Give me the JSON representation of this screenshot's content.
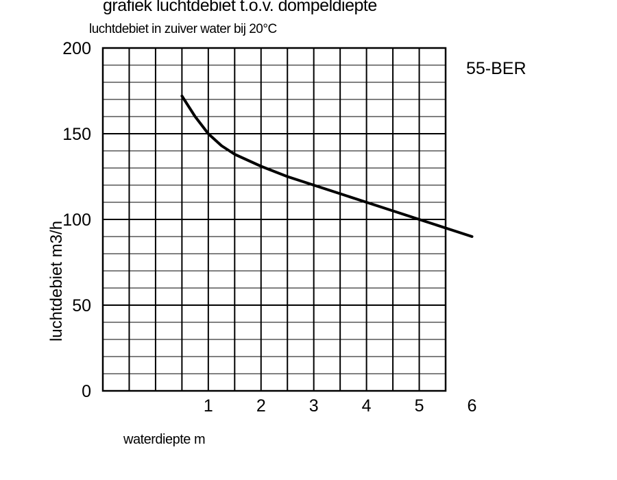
{
  "chart_data": {
    "type": "line",
    "title": "grafiek luchtdebiet t.o.v. dompeldiepte",
    "subtitle": "luchtdebiet in zuiver water bij 20°C",
    "annotation": "55-BER",
    "xlabel": "waterdiepte m",
    "ylabel": "luchtdebiet m3/h",
    "xlim": [
      -1,
      5.5
    ],
    "ylim": [
      0,
      200
    ],
    "x_ticks": [
      1,
      2,
      3,
      4,
      5,
      6
    ],
    "y_ticks": [
      0,
      50,
      100,
      150,
      200
    ],
    "grid": true,
    "series": [
      {
        "x": [
          0.5,
          0.75,
          1.0,
          1.25,
          1.5,
          2.0,
          2.5,
          3.0,
          3.5,
          4.0,
          4.5,
          5.0,
          5.5,
          6.0
        ],
        "y": [
          172,
          160,
          150,
          143,
          138,
          131,
          125,
          120,
          115,
          110,
          105,
          100,
          95,
          90
        ]
      }
    ],
    "colors": {
      "line": "#000000",
      "grid": "#000000"
    }
  }
}
